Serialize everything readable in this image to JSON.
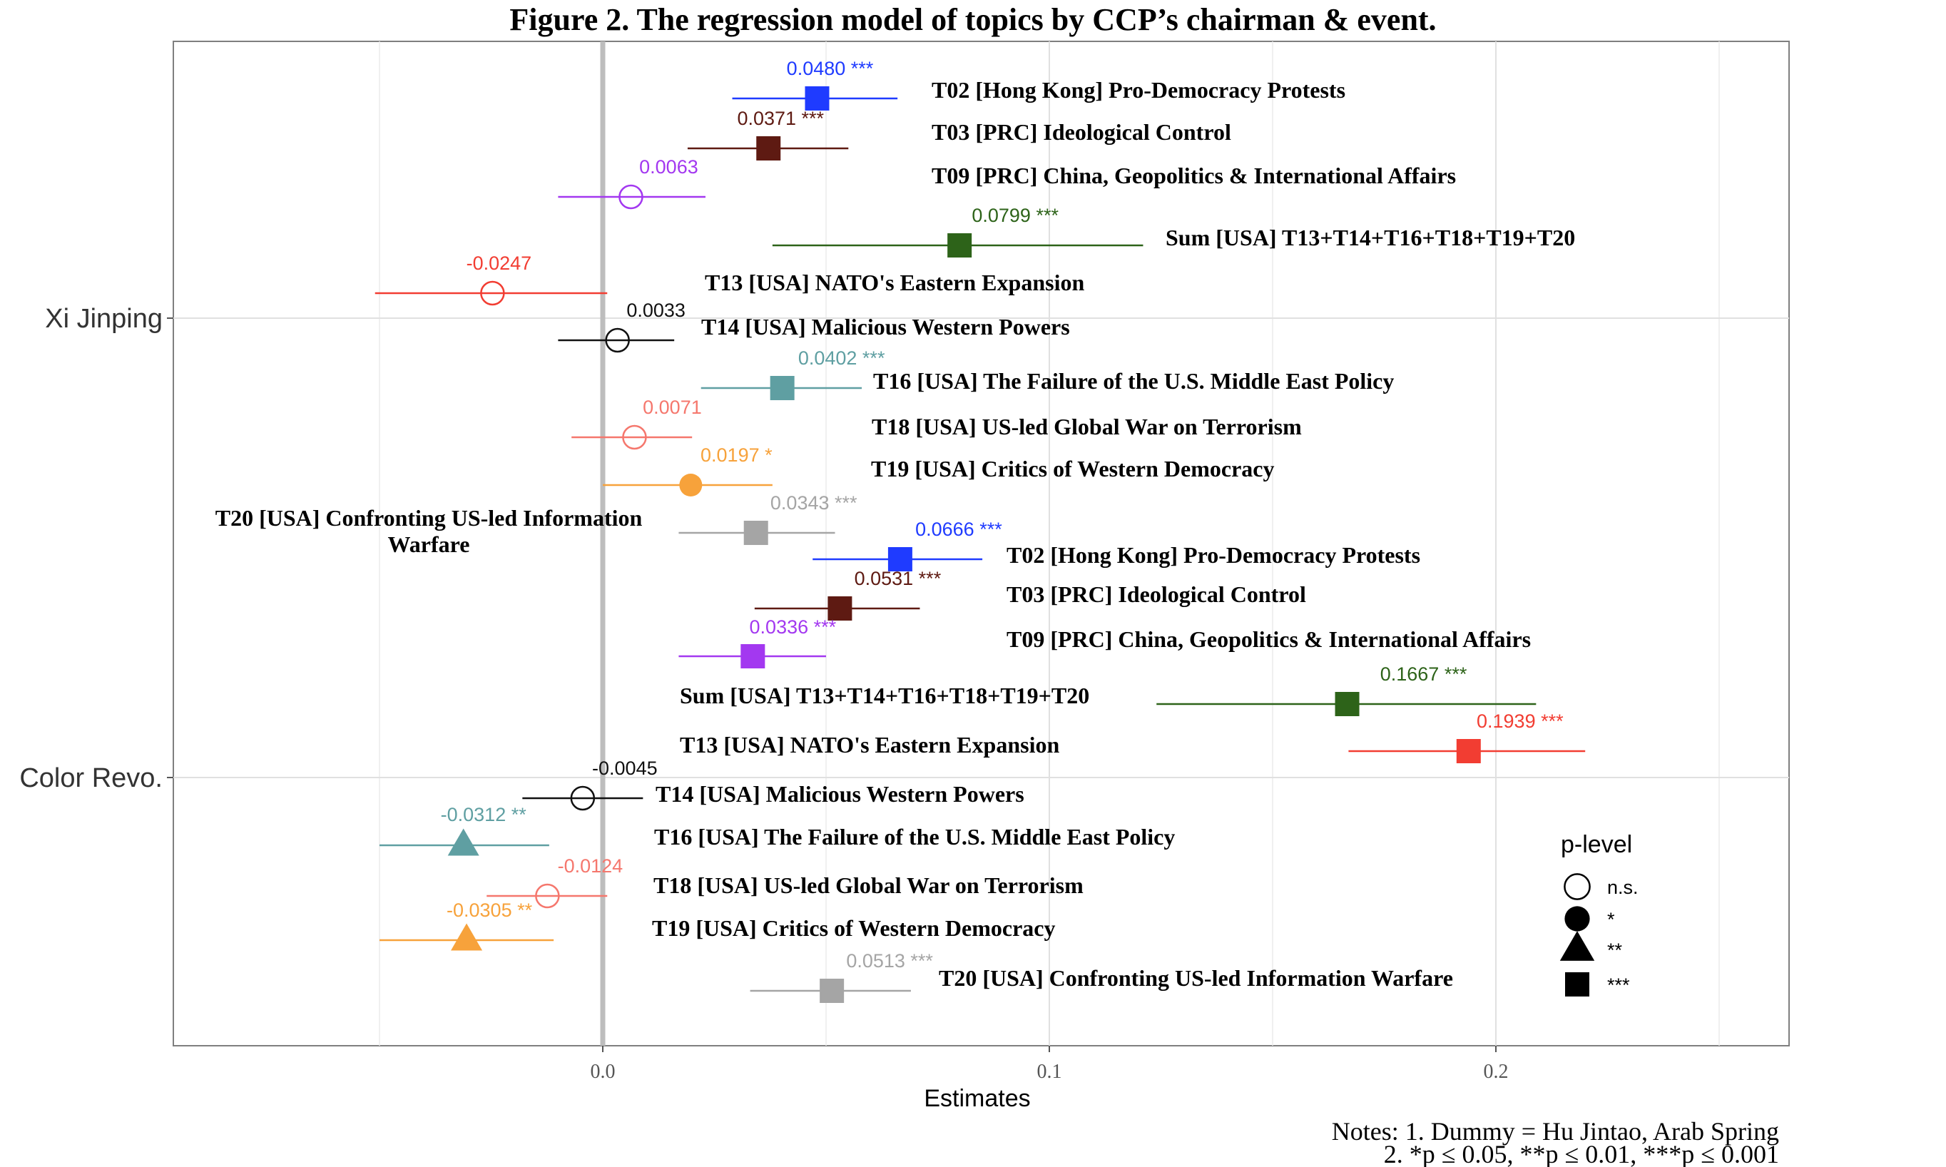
{
  "chart_data": {
    "type": "scatter",
    "title": "Figure 2. The regression model of topics by CCP’s chairman & event.",
    "xlabel": "Estimates",
    "xticks": [
      {
        "value": 0.0,
        "label": "0.0"
      },
      {
        "value": 0.1,
        "label": "0.1"
      },
      {
        "value": 0.2,
        "label": "0.2"
      }
    ],
    "xlim": [
      -0.0965,
      0.2655
    ],
    "grid": true,
    "groups": [
      {
        "name": "Xi Jinping",
        "rows": [
          {
            "topic": "T02 [Hong Kong] Pro-Democracy Protests",
            "estimate": 0.048,
            "label": "0.0480 ***",
            "ci": [
              0.029,
              0.066
            ],
            "color": "#1f3bff",
            "p_level": "***"
          },
          {
            "topic": "T03 [PRC] Ideological Control",
            "estimate": 0.0371,
            "label": "0.0371 ***",
            "ci": [
              0.019,
              0.055
            ],
            "color": "#5e1a12",
            "p_level": "***"
          },
          {
            "topic": "T09 [PRC] China, Geopolitics & International Affairs",
            "estimate": 0.0063,
            "label": "0.0063",
            "ci": [
              -0.01,
              0.023
            ],
            "color": "#a338f0",
            "p_level": "n.s."
          },
          {
            "topic": "Sum [USA] T13+T14+T16+T18+T19+T20",
            "estimate": 0.0799,
            "label": "0.0799 ***",
            "ci": [
              0.038,
              0.121
            ],
            "color": "#2d6319",
            "p_level": "***"
          },
          {
            "topic": "T13 [USA] NATO's Eastern Expansion",
            "estimate": -0.0247,
            "label": "-0.0247",
            "ci": [
              -0.051,
              0.001
            ],
            "color": "#f23d32",
            "p_level": "n.s."
          },
          {
            "topic": "T14 [USA] Malicious Western Powers",
            "estimate": 0.0033,
            "label": "0.0033",
            "ci": [
              -0.01,
              0.016
            ],
            "color": "#111111",
            "p_level": "n.s."
          },
          {
            "topic": "T16 [USA] The Failure of the U.S. Middle East Policy",
            "estimate": 0.0402,
            "label": "0.0402 ***",
            "ci": [
              0.022,
              0.058
            ],
            "color": "#5f9fa2",
            "p_level": "***"
          },
          {
            "topic": "T18 [USA] US-led Global War on Terrorism",
            "estimate": 0.0071,
            "label": "0.0071",
            "ci": [
              -0.007,
              0.02
            ],
            "color": "#f5776d",
            "p_level": "n.s."
          },
          {
            "topic": "T19 [USA] Critics of Western Democracy",
            "estimate": 0.0197,
            "label": "0.0197 *",
            "ci": [
              0.0,
              0.038
            ],
            "color": "#f7a23b",
            "p_level": "*"
          },
          {
            "topic": "T20 [USA] Confronting US-led Information Warfare",
            "estimate": 0.0343,
            "label": "0.0343 ***",
            "ci": [
              0.017,
              0.052
            ],
            "color": "#a5a5a5",
            "p_level": "***"
          }
        ]
      },
      {
        "name": "Color Revo.",
        "rows": [
          {
            "topic": "T02 [Hong Kong] Pro-Democracy Protests",
            "estimate": 0.0666,
            "label": "0.0666 ***",
            "ci": [
              0.047,
              0.085
            ],
            "color": "#1f3bff",
            "p_level": "***"
          },
          {
            "topic": "T03 [PRC] Ideological Control",
            "estimate": 0.0531,
            "label": "0.0531 ***",
            "ci": [
              0.034,
              0.071
            ],
            "color": "#5e1a12",
            "p_level": "***"
          },
          {
            "topic": "T09 [PRC] China, Geopolitics & International Affairs",
            "estimate": 0.0336,
            "label": "0.0336 ***",
            "ci": [
              0.017,
              0.05
            ],
            "color": "#a338f0",
            "p_level": "***"
          },
          {
            "topic": "Sum [USA] T13+T14+T16+T18+T19+T20",
            "estimate": 0.1667,
            "label": "0.1667 ***",
            "ci": [
              0.124,
              0.209
            ],
            "color": "#2d6319",
            "p_level": "***"
          },
          {
            "topic": "T13 [USA] NATO's Eastern Expansion",
            "estimate": 0.1939,
            "label": "0.1939 ***",
            "ci": [
              0.167,
              0.22
            ],
            "color": "#f23d32",
            "p_level": "***"
          },
          {
            "topic": "T14 [USA] Malicious Western Powers",
            "estimate": -0.0045,
            "label": "-0.0045",
            "ci": [
              -0.018,
              0.009
            ],
            "color": "#111111",
            "p_level": "n.s."
          },
          {
            "topic": "T16 [USA] The Failure of the U.S. Middle East Policy",
            "estimate": -0.0312,
            "label": "-0.0312 **",
            "ci": [
              -0.05,
              -0.012
            ],
            "color": "#5f9fa2",
            "p_level": "**"
          },
          {
            "topic": "T18 [USA] US-led Global War on Terrorism",
            "estimate": -0.0124,
            "label": "-0.0124",
            "ci": [
              -0.026,
              0.001
            ],
            "color": "#f5776d",
            "p_level": "n.s."
          },
          {
            "topic": "T19 [USA] Critics of Western Democracy",
            "estimate": -0.0305,
            "label": "-0.0305 **",
            "ci": [
              -0.05,
              -0.011
            ],
            "color": "#f7a23b",
            "p_level": "**"
          },
          {
            "topic": "T20 [USA] Confronting US-led Information Warfare",
            "estimate": 0.0513,
            "label": "0.0513 ***",
            "ci": [
              0.033,
              0.069
            ],
            "color": "#a5a5a5",
            "p_level": "***"
          }
        ]
      }
    ],
    "legend": {
      "title": "p-level",
      "position": "bottom-right",
      "entries": [
        {
          "shape": "open-circle",
          "label": "n.s."
        },
        {
          "shape": "filled-circle",
          "label": "*"
        },
        {
          "shape": "filled-triangle",
          "label": "**"
        },
        {
          "shape": "filled-square",
          "label": "***"
        }
      ]
    },
    "notes": [
      "Notes: 1. Dummy = Hu Jintao, Arab Spring",
      "2. *p ≤ 0.05, **p ≤ 0.01, ***p ≤ 0.001"
    ]
  }
}
